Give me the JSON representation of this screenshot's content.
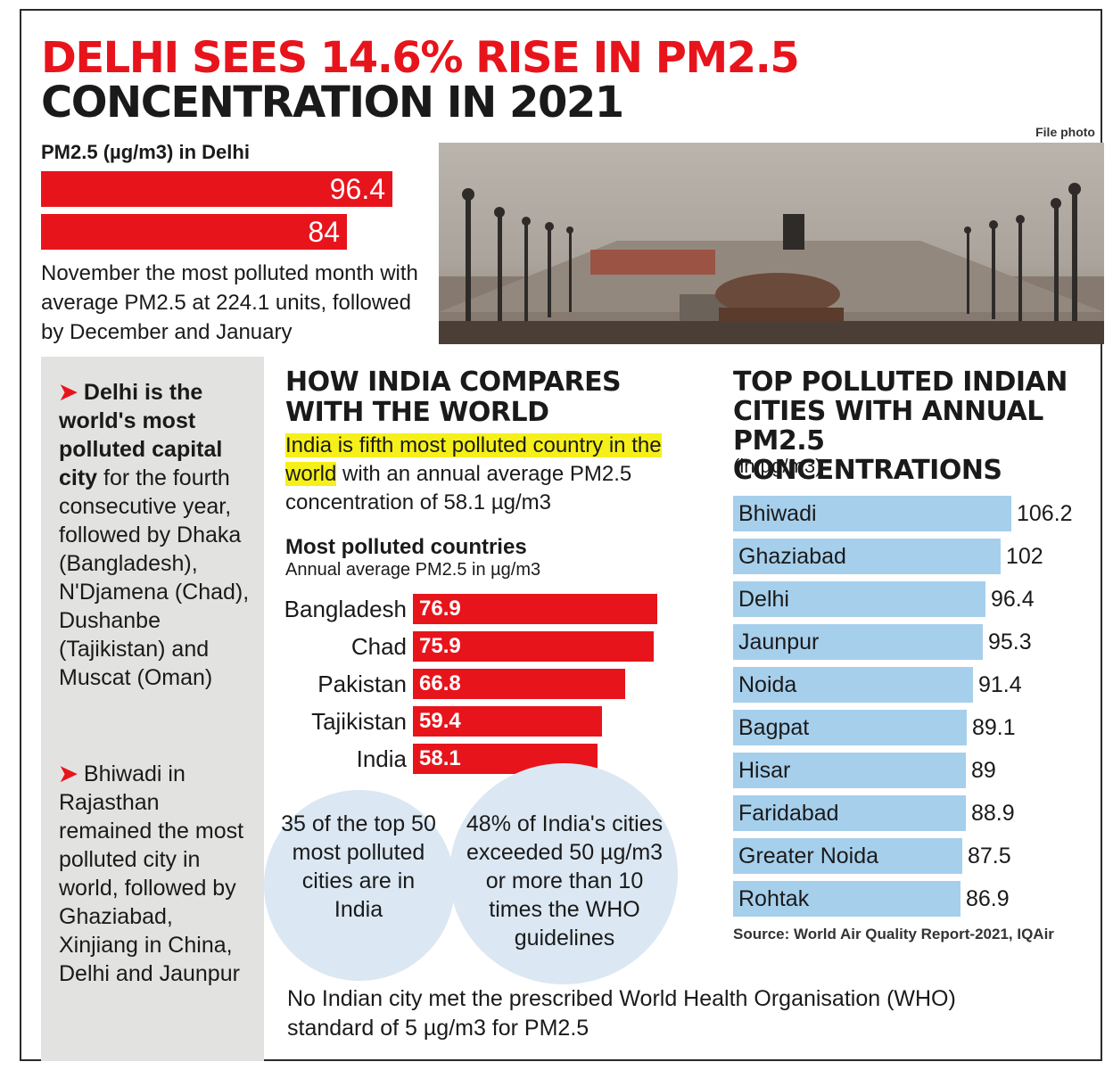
{
  "headline": {
    "line1": "DELHI SEES 14.6% RISE IN PM2.5",
    "line2": "CONCENTRATION IN 2021"
  },
  "photo_credit": "File photo",
  "delhi": {
    "label": "PM2.5 (µg/m3) in Delhi",
    "note": "November the most polluted month with average PM2.5 at 224.1 units, followed by December and January"
  },
  "sidebar": {
    "point1_bold": "Delhi is the world's most polluted capital city",
    "point1_rest": " for the fourth consecutive year, followed by Dhaka (Bangladesh), N'Djamena (Chad), Dushanbe (Tajikistan) and Muscat (Oman)",
    "point2": "Bhiwadi in Rajasthan remained the most polluted city in world, followed by Ghaziabad, Xinjiang in China, Delhi and Jaunpur",
    "bullet_glyph": "➤"
  },
  "compare": {
    "title": "HOW INDIA COMPARES WITH THE WORLD",
    "highlight": "India is fifth most polluted country in the world",
    "rest": " with an annual average PM2.5 concentration of 58.1 µg/m3",
    "countries_title": "Most polluted countries",
    "countries_sub": "Annual average PM2.5 in µg/m3"
  },
  "bubbles": {
    "left": "35 of the top 50 most polluted cities are in India",
    "right": "48% of India's cities exceeded 50 µg/m3 or more than 10 times the WHO guidelines"
  },
  "bottom_note": "No Indian city met the prescribed World Health Organisation (WHO) standard of 5 µg/m3 for PM2.5",
  "cities": {
    "title": "TOP POLLUTED INDIAN CITIES WITH ANNUAL PM2.5 CONCENTRATIONS",
    "subtitle": "(in µg/m3)",
    "source": "Source: World Air Quality Report-2021, IQAir"
  },
  "colors": {
    "red": "#e8141c",
    "light_blue": "#a6cfec",
    "bubble": "#dbe7f2",
    "highlight_yellow": "#f6f01a",
    "gray_panel": "#e2e2e0"
  },
  "chart_data": [
    {
      "type": "bar",
      "title": "PM2.5 (µg/m3) in Delhi",
      "categories": [
        "",
        ""
      ],
      "values": [
        96.4,
        84
      ]
    },
    {
      "type": "bar",
      "title": "Most polluted countries",
      "subtitle": "Annual average PM2.5 in µg/m3",
      "categories": [
        "Bangladesh",
        "Chad",
        "Pakistan",
        "Tajikistan",
        "India"
      ],
      "values": [
        76.9,
        75.9,
        66.8,
        59.4,
        58.1
      ]
    },
    {
      "type": "bar",
      "title": "TOP POLLUTED INDIAN CITIES WITH ANNUAL PM2.5 CONCENTRATIONS",
      "subtitle": "(in µg/m3)",
      "categories": [
        "Bhiwadi",
        "Ghaziabad",
        "Delhi",
        "Jaunpur",
        "Noida",
        "Bagpat",
        "Hisar",
        "Faridabad",
        "Greater Noida",
        "Rohtak"
      ],
      "values": [
        106.2,
        102,
        96.4,
        95.3,
        91.4,
        89.1,
        89,
        88.9,
        87.5,
        86.9
      ]
    }
  ]
}
